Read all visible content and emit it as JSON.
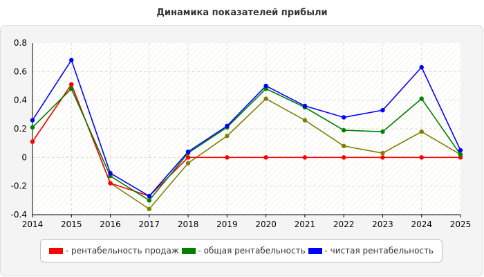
{
  "chart_data": {
    "type": "line",
    "title": "Динамика показателей прибыли",
    "xlabel": "",
    "ylabel": "",
    "x": [
      2014,
      2015,
      2016,
      2017,
      2018,
      2019,
      2020,
      2021,
      2022,
      2023,
      2024,
      2025
    ],
    "ylim": [
      -0.4,
      0.8
    ],
    "yticks": [
      -0.4,
      -0.2,
      0,
      0.2,
      0.4,
      0.6,
      0.8
    ],
    "ytick_labels": [
      "-0.4",
      "-0.2",
      "0",
      "0.2",
      "0.4",
      "0.6",
      "0.8"
    ],
    "grid": true,
    "legend_position": "bottom",
    "series": [
      {
        "name": "- рентабельность продаж",
        "color": "#ff0000",
        "values": [
          0.11,
          0.51,
          -0.18,
          -0.27,
          0.0,
          0.0,
          0.0,
          0.0,
          0.0,
          0.0,
          0.0,
          0.0
        ]
      },
      {
        "name": "- общая рентабельность",
        "color": "#008000",
        "values": [
          0.21,
          0.48,
          -0.13,
          -0.3,
          0.03,
          0.21,
          0.48,
          0.35,
          0.19,
          0.18,
          0.41,
          0.02
        ]
      },
      {
        "name": "- чистая рентабельность",
        "color": "#0000ff",
        "values": [
          0.26,
          0.68,
          -0.11,
          -0.27,
          0.04,
          0.22,
          0.5,
          0.36,
          0.28,
          0.33,
          0.63,
          0.05
        ]
      },
      {
        "name": "",
        "color": "#808000",
        "values": [
          0.11,
          0.51,
          -0.18,
          -0.36,
          -0.04,
          0.15,
          0.41,
          0.26,
          0.08,
          0.03,
          0.18,
          0.02
        ]
      }
    ],
    "legend": [
      {
        "label": "- рентабельность продаж",
        "color": "#ff0000"
      },
      {
        "label": "- общая рентабельность",
        "color": "#008000"
      },
      {
        "label": "- чистая рентабельность",
        "color": "#0000ff"
      }
    ]
  }
}
